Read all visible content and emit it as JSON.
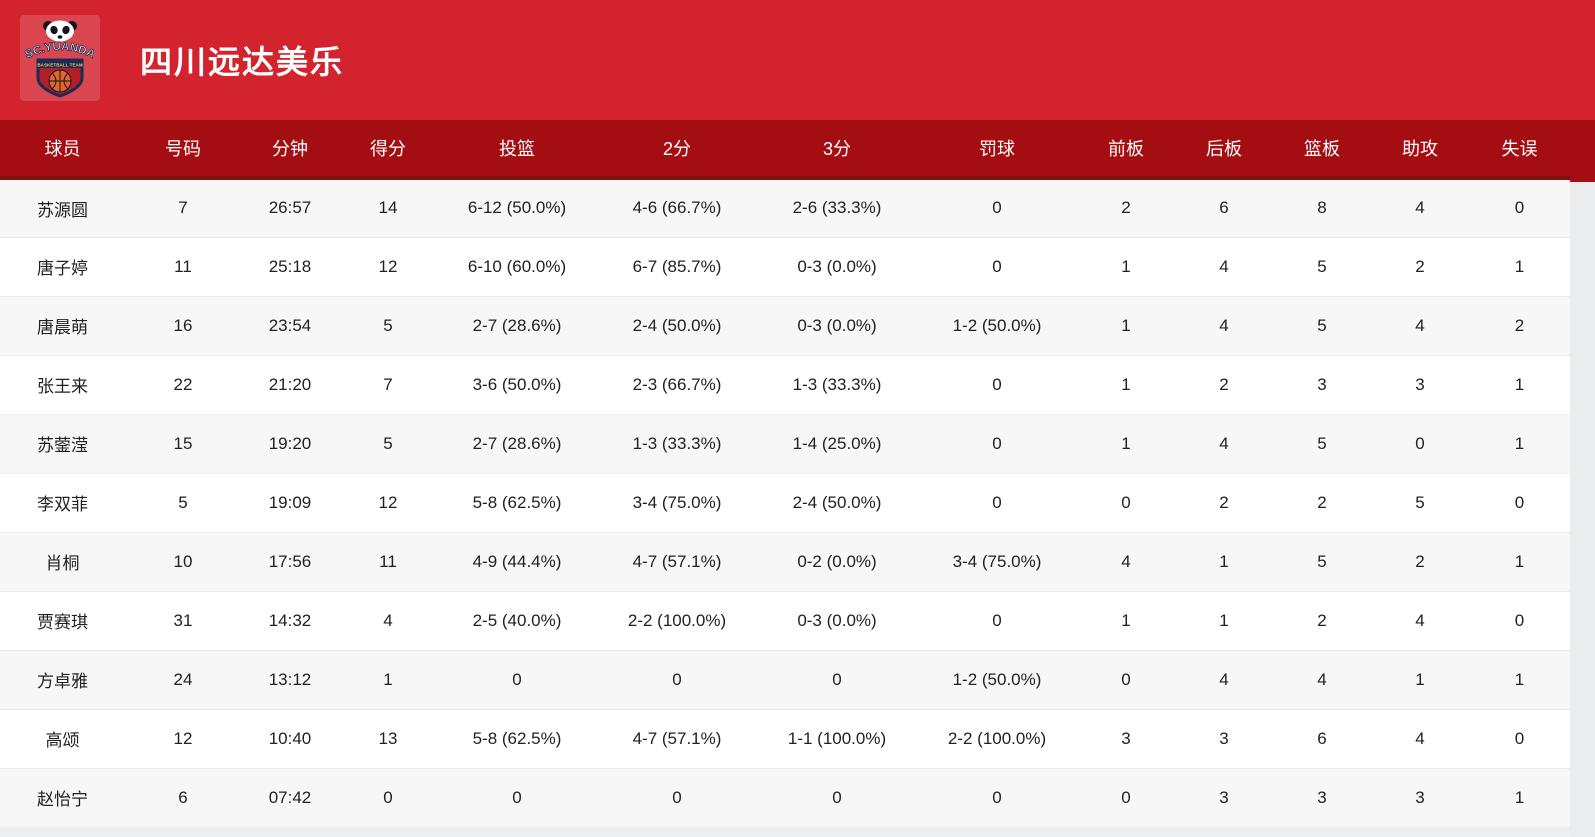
{
  "team": {
    "name": "四川远达美乐",
    "logo_arc_text": "SC.YUANDA",
    "logo_banner_text": "BASKETBALL TEAM"
  },
  "colors": {
    "band_red": "#d2232e",
    "table_header_red": "#a40e13",
    "header_divider_maroon": "#7c0f12",
    "row_alt_gray": "#f7f7f8",
    "logo_navy": "#1d2a56",
    "logo_orange": "#e0662c",
    "logo_yellow": "#f2c94c"
  },
  "table": {
    "columns": [
      "球员",
      "号码",
      "分钟",
      "得分",
      "投篮",
      "2分",
      "3分",
      "罚球",
      "前板",
      "后板",
      "篮板",
      "助攻",
      "失误"
    ],
    "rows": [
      [
        "苏源圆",
        "7",
        "26:57",
        "14",
        "6-12 (50.0%)",
        "4-6 (66.7%)",
        "2-6 (33.3%)",
        "0",
        "2",
        "6",
        "8",
        "4",
        "0"
      ],
      [
        "唐子婷",
        "11",
        "25:18",
        "12",
        "6-10 (60.0%)",
        "6-7 (85.7%)",
        "0-3 (0.0%)",
        "0",
        "1",
        "4",
        "5",
        "2",
        "1"
      ],
      [
        "唐晨萌",
        "16",
        "23:54",
        "5",
        "2-7 (28.6%)",
        "2-4 (50.0%)",
        "0-3 (0.0%)",
        "1-2 (50.0%)",
        "1",
        "4",
        "5",
        "4",
        "2"
      ],
      [
        "张王来",
        "22",
        "21:20",
        "7",
        "3-6 (50.0%)",
        "2-3 (66.7%)",
        "1-3 (33.3%)",
        "0",
        "1",
        "2",
        "3",
        "3",
        "1"
      ],
      [
        "苏蓥滢",
        "15",
        "19:20",
        "5",
        "2-7 (28.6%)",
        "1-3 (33.3%)",
        "1-4 (25.0%)",
        "0",
        "1",
        "4",
        "5",
        "0",
        "1"
      ],
      [
        "李双菲",
        "5",
        "19:09",
        "12",
        "5-8 (62.5%)",
        "3-4 (75.0%)",
        "2-4 (50.0%)",
        "0",
        "0",
        "2",
        "2",
        "5",
        "0"
      ],
      [
        "肖桐",
        "10",
        "17:56",
        "11",
        "4-9 (44.4%)",
        "4-7 (57.1%)",
        "0-2 (0.0%)",
        "3-4 (75.0%)",
        "4",
        "1",
        "5",
        "2",
        "1"
      ],
      [
        "贾赛琪",
        "31",
        "14:32",
        "4",
        "2-5 (40.0%)",
        "2-2 (100.0%)",
        "0-3 (0.0%)",
        "0",
        "1",
        "1",
        "2",
        "4",
        "0"
      ],
      [
        "方卓雅",
        "24",
        "13:12",
        "1",
        "0",
        "0",
        "0",
        "1-2 (50.0%)",
        "0",
        "4",
        "4",
        "1",
        "1"
      ],
      [
        "高颂",
        "12",
        "10:40",
        "13",
        "5-8 (62.5%)",
        "4-7 (57.1%)",
        "1-1 (100.0%)",
        "2-2 (100.0%)",
        "3",
        "3",
        "6",
        "4",
        "0"
      ],
      [
        "赵怡宁",
        "6",
        "07:42",
        "0",
        "0",
        "0",
        "0",
        "0",
        "0",
        "3",
        "3",
        "3",
        "1"
      ]
    ]
  }
}
